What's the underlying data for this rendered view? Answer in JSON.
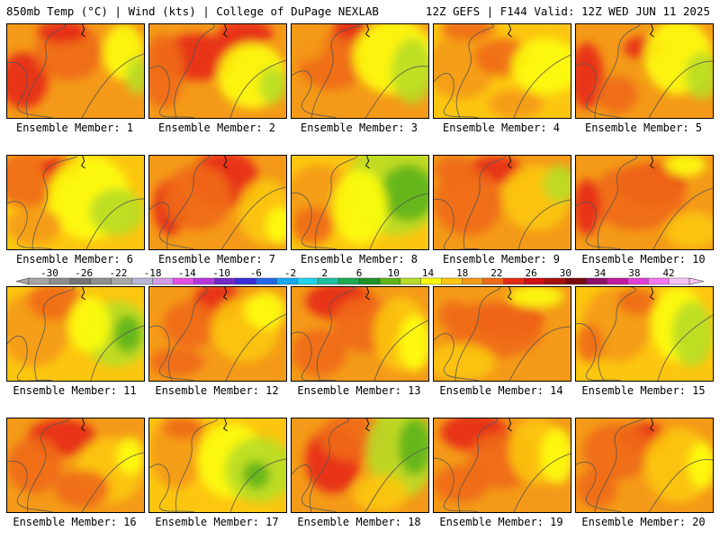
{
  "header": {
    "left": "850mb Temp (°C) | Wind (kts) | College of DuPage NEXLAB",
    "right": "12Z GEFS | F144 Valid: 12Z WED JUN 11 2025"
  },
  "label_prefix": "Ensemble Member: ",
  "members": [
    {
      "id": 1,
      "label": "Ensemble Member: 1",
      "bg": "#f49a18",
      "spots": [
        [
          "#e72a14",
          0.12,
          0.6,
          0.18,
          0.3
        ],
        [
          "#f06a16",
          0.45,
          0.3,
          0.25,
          0.3
        ],
        [
          "#fdfd08",
          0.85,
          0.3,
          0.15,
          0.3
        ],
        [
          "#b8dd26",
          0.95,
          0.55,
          0.08,
          0.2
        ],
        [
          "#e72a14",
          0.4,
          0.08,
          0.18,
          0.12
        ]
      ]
    },
    {
      "id": 2,
      "label": "Ensemble Member: 2",
      "bg": "#f49a18",
      "spots": [
        [
          "#e72a14",
          0.35,
          0.35,
          0.3,
          0.25
        ],
        [
          "#e72a14",
          0.7,
          0.1,
          0.2,
          0.15
        ],
        [
          "#f06a16",
          0.1,
          0.5,
          0.15,
          0.4
        ],
        [
          "#fdfd08",
          0.75,
          0.55,
          0.25,
          0.35
        ],
        [
          "#b8dd26",
          0.9,
          0.65,
          0.1,
          0.2
        ]
      ]
    },
    {
      "id": 3,
      "label": "Ensemble Member: 3",
      "bg": "#f49a18",
      "spots": [
        [
          "#f06a16",
          0.3,
          0.4,
          0.25,
          0.3
        ],
        [
          "#e72a14",
          0.45,
          0.05,
          0.15,
          0.12
        ],
        [
          "#fdfd08",
          0.75,
          0.35,
          0.3,
          0.4
        ],
        [
          "#b8dd26",
          0.88,
          0.5,
          0.15,
          0.35
        ],
        [
          "#f49a18",
          0.1,
          0.2,
          0.15,
          0.2
        ]
      ]
    },
    {
      "id": 4,
      "label": "Ensemble Member: 4",
      "bg": "#fcc610",
      "spots": [
        [
          "#f49a18",
          0.2,
          0.45,
          0.25,
          0.35
        ],
        [
          "#f06a16",
          0.5,
          0.35,
          0.2,
          0.2
        ],
        [
          "#f06a16",
          0.25,
          0.05,
          0.2,
          0.12
        ],
        [
          "#fdfd08",
          0.82,
          0.45,
          0.25,
          0.3
        ],
        [
          "#f49a18",
          0.6,
          0.85,
          0.2,
          0.15
        ]
      ]
    },
    {
      "id": 5,
      "label": "Ensemble Member: 5",
      "bg": "#f49a18",
      "spots": [
        [
          "#e72a14",
          0.08,
          0.55,
          0.12,
          0.35
        ],
        [
          "#e72a14",
          0.5,
          0.25,
          0.15,
          0.12
        ],
        [
          "#fdfd08",
          0.75,
          0.35,
          0.25,
          0.4
        ],
        [
          "#b8dd26",
          0.92,
          0.55,
          0.12,
          0.25
        ],
        [
          "#f06a16",
          0.3,
          0.75,
          0.15,
          0.2
        ]
      ]
    },
    {
      "id": 6,
      "label": "Ensemble Member: 6",
      "bg": "#fcc610",
      "spots": [
        [
          "#f06a16",
          0.15,
          0.25,
          0.25,
          0.3
        ],
        [
          "#e72a14",
          0.4,
          0.12,
          0.15,
          0.12
        ],
        [
          "#fdfd08",
          0.6,
          0.45,
          0.3,
          0.45
        ],
        [
          "#b8dd26",
          0.8,
          0.6,
          0.2,
          0.25
        ],
        [
          "#f49a18",
          0.2,
          0.75,
          0.2,
          0.2
        ]
      ]
    },
    {
      "id": 7,
      "label": "Ensemble Member: 7",
      "bg": "#f49a18",
      "spots": [
        [
          "#e72a14",
          0.55,
          0.25,
          0.25,
          0.3
        ],
        [
          "#e72a14",
          0.15,
          0.55,
          0.12,
          0.3
        ],
        [
          "#f06a16",
          0.35,
          0.45,
          0.25,
          0.35
        ],
        [
          "#fcc610",
          0.85,
          0.6,
          0.2,
          0.35
        ],
        [
          "#fdfd08",
          0.95,
          0.75,
          0.1,
          0.2
        ]
      ]
    },
    {
      "id": 8,
      "label": "Ensemble Member: 8",
      "bg": "#fcc610",
      "spots": [
        [
          "#b8dd26",
          0.75,
          0.35,
          0.35,
          0.5
        ],
        [
          "#5eb41a",
          0.85,
          0.4,
          0.2,
          0.3
        ],
        [
          "#f49a18",
          0.2,
          0.45,
          0.25,
          0.35
        ],
        [
          "#fdfd08",
          0.5,
          0.55,
          0.2,
          0.4
        ],
        [
          "#f06a16",
          0.15,
          0.75,
          0.15,
          0.2
        ]
      ]
    },
    {
      "id": 9,
      "label": "Ensemble Member: 9",
      "bg": "#f49a18",
      "spots": [
        [
          "#e72a14",
          0.45,
          0.15,
          0.2,
          0.15
        ],
        [
          "#f06a16",
          0.25,
          0.5,
          0.25,
          0.35
        ],
        [
          "#fcc610",
          0.75,
          0.45,
          0.25,
          0.35
        ],
        [
          "#b8dd26",
          0.92,
          0.3,
          0.12,
          0.2
        ],
        [
          "#f06a16",
          0.15,
          0.15,
          0.15,
          0.15
        ]
      ]
    },
    {
      "id": 10,
      "label": "Ensemble Member: 10",
      "bg": "#f49a18",
      "spots": [
        [
          "#e72a14",
          0.55,
          0.3,
          0.25,
          0.22
        ],
        [
          "#f06a16",
          0.45,
          0.45,
          0.35,
          0.35
        ],
        [
          "#e72a14",
          0.08,
          0.55,
          0.1,
          0.3
        ],
        [
          "#fcc610",
          0.85,
          0.8,
          0.2,
          0.2
        ],
        [
          "#fdfd08",
          0.8,
          0.1,
          0.15,
          0.12
        ]
      ]
    },
    {
      "id": 11,
      "label": "Ensemble Member: 11",
      "bg": "#fcc610",
      "spots": [
        [
          "#f49a18",
          0.2,
          0.45,
          0.25,
          0.4
        ],
        [
          "#f06a16",
          0.35,
          0.15,
          0.2,
          0.2
        ],
        [
          "#b8dd26",
          0.8,
          0.5,
          0.25,
          0.35
        ],
        [
          "#5eb41a",
          0.88,
          0.5,
          0.1,
          0.2
        ],
        [
          "#fdfd08",
          0.6,
          0.4,
          0.15,
          0.3
        ]
      ]
    },
    {
      "id": 12,
      "label": "Ensemble Member: 12",
      "bg": "#f49a18",
      "spots": [
        [
          "#e72a14",
          0.5,
          0.15,
          0.18,
          0.2
        ],
        [
          "#f06a16",
          0.3,
          0.4,
          0.2,
          0.25
        ],
        [
          "#fcc610",
          0.7,
          0.45,
          0.25,
          0.35
        ],
        [
          "#fdfd08",
          0.85,
          0.25,
          0.15,
          0.2
        ],
        [
          "#f06a16",
          0.2,
          0.8,
          0.2,
          0.15
        ]
      ]
    },
    {
      "id": 13,
      "label": "Ensemble Member: 13",
      "bg": "#f49a18",
      "spots": [
        [
          "#e72a14",
          0.35,
          0.15,
          0.25,
          0.2
        ],
        [
          "#f06a16",
          0.55,
          0.4,
          0.25,
          0.3
        ],
        [
          "#fcc610",
          0.8,
          0.5,
          0.2,
          0.4
        ],
        [
          "#fdfd08",
          0.9,
          0.6,
          0.12,
          0.3
        ],
        [
          "#f06a16",
          0.2,
          0.7,
          0.2,
          0.25
        ]
      ]
    },
    {
      "id": 14,
      "label": "Ensemble Member: 14",
      "bg": "#f49a18",
      "spots": [
        [
          "#e72a14",
          0.55,
          0.35,
          0.25,
          0.18
        ],
        [
          "#f06a16",
          0.45,
          0.45,
          0.35,
          0.3
        ],
        [
          "#fcc610",
          0.2,
          0.8,
          0.25,
          0.2
        ],
        [
          "#fdfd08",
          0.75,
          0.1,
          0.2,
          0.12
        ],
        [
          "#f06a16",
          0.15,
          0.3,
          0.12,
          0.15
        ]
      ]
    },
    {
      "id": 15,
      "label": "Ensemble Member: 15",
      "bg": "#fcc610",
      "spots": [
        [
          "#f49a18",
          0.3,
          0.4,
          0.25,
          0.4
        ],
        [
          "#f06a16",
          0.45,
          0.15,
          0.15,
          0.15
        ],
        [
          "#fdfd08",
          0.75,
          0.4,
          0.2,
          0.4
        ],
        [
          "#b8dd26",
          0.85,
          0.5,
          0.15,
          0.35
        ],
        [
          "#f06a16",
          0.1,
          0.6,
          0.1,
          0.2
        ]
      ]
    },
    {
      "id": 16,
      "label": "Ensemble Member: 16",
      "bg": "#f49a18",
      "spots": [
        [
          "#e72a14",
          0.4,
          0.2,
          0.25,
          0.2
        ],
        [
          "#f06a16",
          0.2,
          0.5,
          0.2,
          0.3
        ],
        [
          "#fcc610",
          0.75,
          0.55,
          0.25,
          0.35
        ],
        [
          "#f06a16",
          0.55,
          0.75,
          0.2,
          0.2
        ],
        [
          "#fdfd08",
          0.9,
          0.4,
          0.1,
          0.2
        ]
      ]
    },
    {
      "id": 17,
      "label": "Ensemble Member: 17",
      "bg": "#fcc610",
      "spots": [
        [
          "#f49a18",
          0.2,
          0.35,
          0.2,
          0.4
        ],
        [
          "#fdfd08",
          0.6,
          0.45,
          0.25,
          0.4
        ],
        [
          "#b8dd26",
          0.8,
          0.55,
          0.25,
          0.35
        ],
        [
          "#5eb41a",
          0.78,
          0.6,
          0.1,
          0.15
        ],
        [
          "#f06a16",
          0.25,
          0.1,
          0.15,
          0.12
        ]
      ]
    },
    {
      "id": 18,
      "label": "Ensemble Member: 18",
      "bg": "#f49a18",
      "spots": [
        [
          "#e72a14",
          0.3,
          0.45,
          0.2,
          0.35
        ],
        [
          "#f06a16",
          0.45,
          0.2,
          0.25,
          0.25
        ],
        [
          "#b8dd26",
          0.8,
          0.35,
          0.25,
          0.5
        ],
        [
          "#5eb41a",
          0.9,
          0.3,
          0.12,
          0.3
        ],
        [
          "#fcc610",
          0.65,
          0.8,
          0.2,
          0.2
        ]
      ]
    },
    {
      "id": 19,
      "label": "Ensemble Member: 19",
      "bg": "#f49a18",
      "spots": [
        [
          "#e72a14",
          0.3,
          0.15,
          0.25,
          0.2
        ],
        [
          "#f06a16",
          0.5,
          0.45,
          0.25,
          0.3
        ],
        [
          "#fcc610",
          0.75,
          0.35,
          0.2,
          0.35
        ],
        [
          "#fdfd08",
          0.9,
          0.4,
          0.12,
          0.3
        ],
        [
          "#f06a16",
          0.2,
          0.7,
          0.2,
          0.2
        ]
      ]
    },
    {
      "id": 20,
      "label": "Ensemble Member: 20",
      "bg": "#f49a18",
      "spots": [
        [
          "#e72a14",
          0.5,
          0.2,
          0.18,
          0.15
        ],
        [
          "#f06a16",
          0.3,
          0.35,
          0.25,
          0.3
        ],
        [
          "#fcc610",
          0.75,
          0.5,
          0.25,
          0.4
        ],
        [
          "#fdfd08",
          0.92,
          0.5,
          0.1,
          0.25
        ],
        [
          "#f06a16",
          0.15,
          0.75,
          0.15,
          0.2
        ]
      ]
    }
  ],
  "colorbar": {
    "labels": [
      "-30",
      "-26",
      "-22",
      "-18",
      "-14",
      "-10",
      "-6",
      "-2",
      "2",
      "6",
      "10",
      "14",
      "18",
      "22",
      "26",
      "30",
      "34",
      "38",
      "42"
    ],
    "colors": [
      "#a6a6a6",
      "#8c8c8c",
      "#737373",
      "#8f8f8f",
      "#a9a9a9",
      "#b6b6d6",
      "#d49be6",
      "#e251e3",
      "#b437dd",
      "#7328c8",
      "#3a2fd6",
      "#2266ec",
      "#17a8f2",
      "#20d2ea",
      "#1fbfa3",
      "#1faa52",
      "#1f9328",
      "#5eb41a",
      "#b8dd26",
      "#fdfd08",
      "#fcc610",
      "#f49a18",
      "#f06a16",
      "#e72a14",
      "#d30f12",
      "#a8100f",
      "#7a0a0d",
      "#8e1069",
      "#c21a9d",
      "#e13ed8",
      "#f777f2",
      "#f9c3f6"
    ]
  }
}
